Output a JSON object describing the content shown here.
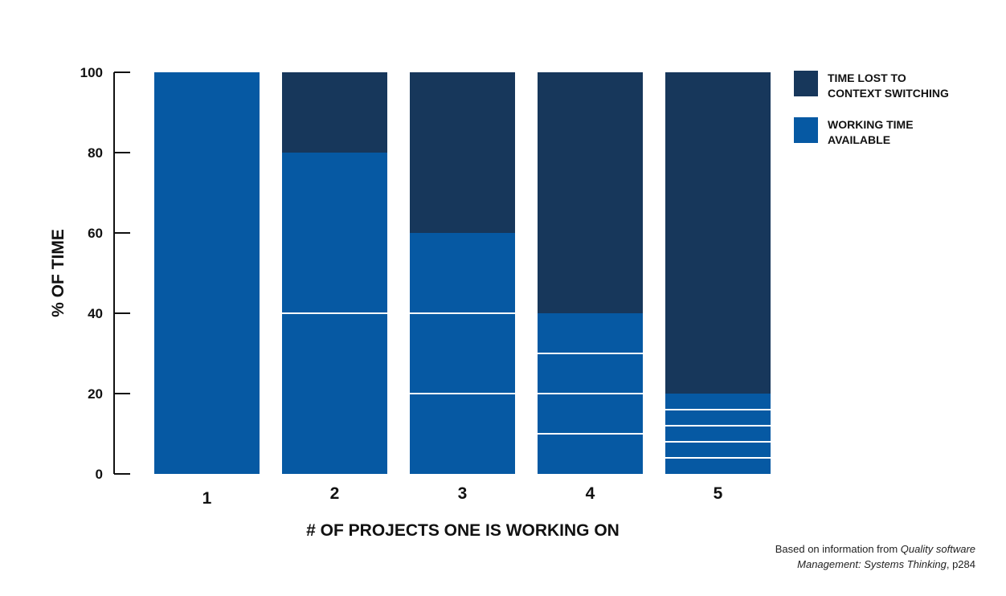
{
  "chart_data": {
    "type": "bar",
    "stacked": true,
    "categories": [
      "1",
      "2",
      "3",
      "4",
      "5"
    ],
    "series": [
      {
        "name": "WORKING TIME AVAILABLE",
        "color": "#0659a3",
        "values": [
          100,
          80,
          60,
          40,
          20
        ]
      },
      {
        "name": "TIME LOST TO CONTEXT SWITCHING",
        "color": "#17375b",
        "values": [
          0,
          20,
          40,
          60,
          80
        ]
      }
    ],
    "per_project_segments": [
      1,
      2,
      3,
      4,
      5
    ],
    "xlabel": "# OF PROJECTS ONE IS WORKING ON",
    "ylabel": "% OF TIME",
    "ylim": [
      0,
      100
    ],
    "yticks": [
      0,
      20,
      40,
      60,
      80,
      100
    ],
    "grid": false,
    "legend_position": "right"
  },
  "legend": [
    {
      "label": "TIME LOST TO\nCONTEXT SWITCHING",
      "color": "#17375b"
    },
    {
      "label": "WORKING TIME\nAVAILABLE",
      "color": "#0659a3"
    }
  ],
  "source": {
    "prefix": "Based on information from ",
    "title_line1": "Quality software",
    "title_line2": "Management: Systems Thinking",
    "suffix": ", p284"
  }
}
